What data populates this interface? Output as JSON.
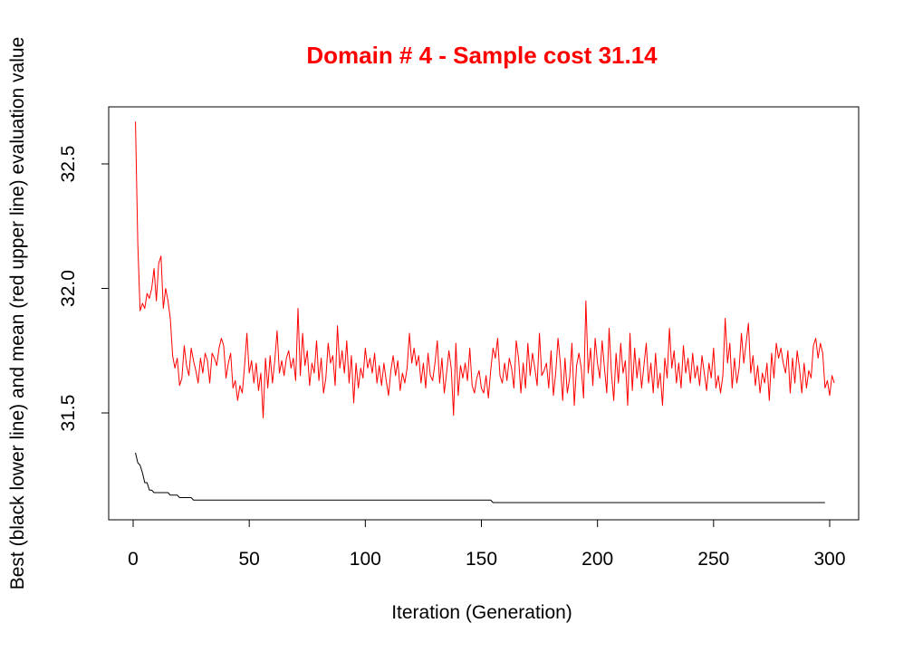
{
  "colors": {
    "title": "#ff0000",
    "mean_line": "#ff0000",
    "best_line": "#000000",
    "axes": "#000000",
    "background": "#ffffff"
  },
  "chart_data": {
    "type": "line",
    "title": "Domain # 4  - Sample cost 31.14",
    "xlabel": "Iteration (Generation)",
    "ylabel": "Best (black lower line) and mean (red upper line) evaluation value",
    "xlim": [
      0,
      300
    ],
    "ylim": [
      31.1,
      32.7
    ],
    "x_ticks": [
      0,
      50,
      100,
      150,
      200,
      250,
      300
    ],
    "x_tick_labels": [
      "0",
      "50",
      "100",
      "150",
      "200",
      "250",
      "300"
    ],
    "y_ticks": [
      31.5,
      32.0,
      32.5
    ],
    "y_tick_labels": [
      "31.5",
      "32.0",
      "32.5"
    ],
    "grid": false,
    "legend": "none",
    "x_range": [
      1,
      300
    ],
    "series": [
      {
        "color": "#ff0000",
        "values": [
          32.67,
          32.18,
          31.91,
          31.94,
          31.92,
          31.98,
          31.96,
          32.0,
          32.08,
          31.95,
          32.1,
          32.13,
          31.92,
          32.0,
          31.95,
          31.88,
          31.73,
          31.68,
          31.72,
          31.61,
          31.64,
          31.77,
          31.69,
          31.65,
          31.76,
          31.71,
          31.67,
          31.62,
          31.72,
          31.66,
          31.74,
          31.71,
          31.62,
          31.74,
          31.72,
          31.69,
          31.76,
          31.8,
          31.77,
          31.64,
          31.7,
          31.74,
          31.6,
          31.63,
          31.55,
          31.61,
          31.58,
          31.69,
          31.82,
          31.66,
          31.71,
          31.62,
          31.7,
          31.59,
          31.66,
          31.48,
          31.72,
          31.6,
          31.73,
          31.62,
          31.71,
          31.83,
          31.66,
          31.71,
          31.65,
          31.72,
          31.75,
          31.68,
          31.72,
          31.63,
          31.92,
          31.65,
          31.82,
          31.69,
          31.75,
          31.61,
          31.7,
          31.66,
          31.79,
          31.63,
          31.72,
          31.58,
          31.64,
          31.78,
          31.7,
          31.73,
          31.61,
          31.85,
          31.68,
          31.75,
          31.66,
          31.79,
          31.62,
          31.73,
          31.54,
          31.7,
          31.6,
          31.68,
          31.64,
          31.76,
          31.68,
          31.72,
          31.66,
          31.74,
          31.62,
          31.69,
          31.61,
          31.7,
          31.63,
          31.57,
          31.67,
          31.73,
          31.65,
          31.71,
          31.59,
          31.66,
          31.62,
          31.68,
          31.82,
          31.7,
          31.76,
          31.69,
          31.73,
          31.62,
          31.7,
          31.6,
          31.74,
          31.65,
          31.63,
          31.7,
          31.79,
          31.62,
          31.72,
          31.58,
          31.66,
          31.75,
          31.68,
          31.49,
          31.78,
          31.57,
          31.69,
          31.64,
          31.7,
          31.63,
          31.76,
          31.61,
          31.58,
          31.64,
          31.67,
          31.6,
          31.58,
          31.65,
          31.56,
          31.67,
          31.76,
          31.72,
          31.8,
          31.65,
          31.62,
          31.7,
          31.63,
          31.72,
          31.68,
          31.6,
          31.79,
          31.72,
          31.58,
          31.7,
          31.6,
          31.78,
          31.65,
          31.74,
          31.68,
          31.61,
          31.82,
          31.65,
          31.67,
          31.7,
          31.6,
          31.75,
          31.57,
          31.66,
          31.8,
          31.7,
          31.55,
          31.72,
          31.58,
          31.64,
          31.78,
          31.53,
          31.69,
          31.74,
          31.68,
          31.56,
          31.95,
          31.66,
          31.76,
          31.61,
          31.8,
          31.7,
          31.64,
          31.79,
          31.68,
          31.58,
          31.84,
          31.66,
          31.55,
          31.74,
          31.62,
          31.78,
          31.66,
          31.71,
          31.53,
          31.82,
          31.59,
          31.76,
          31.64,
          31.72,
          31.6,
          31.69,
          31.78,
          31.62,
          31.7,
          31.58,
          31.74,
          31.6,
          31.66,
          31.53,
          31.72,
          31.64,
          31.84,
          31.68,
          31.75,
          31.62,
          31.7,
          31.6,
          31.77,
          31.66,
          31.72,
          31.62,
          31.74,
          31.64,
          31.69,
          31.61,
          31.73,
          31.66,
          31.59,
          31.7,
          31.64,
          31.76,
          31.6,
          31.65,
          31.58,
          31.65,
          31.88,
          31.7,
          31.78,
          31.6,
          31.72,
          31.62,
          31.68,
          31.82,
          31.7,
          31.78,
          31.86,
          31.66,
          31.73,
          31.61,
          31.69,
          31.58,
          31.66,
          31.62,
          31.7,
          31.55,
          31.74,
          31.64,
          31.78,
          31.72,
          31.76,
          31.7,
          31.66,
          31.75,
          31.58,
          31.72,
          31.62,
          31.75,
          31.68,
          31.58,
          31.7,
          31.6,
          31.67,
          31.64,
          31.77,
          31.8,
          31.72,
          31.78,
          31.74,
          31.6,
          31.63,
          31.57,
          31.65,
          31.62
        ]
      },
      {
        "color": "#000000",
        "values": [
          31.34,
          31.3,
          31.29,
          31.26,
          31.22,
          31.22,
          31.19,
          31.19,
          31.18,
          31.18,
          31.18,
          31.18,
          31.18,
          31.18,
          31.18,
          31.17,
          31.17,
          31.17,
          31.17,
          31.16,
          31.16,
          31.16,
          31.16,
          31.16,
          31.16,
          31.15,
          31.15,
          31.15,
          31.15,
          31.15,
          31.15,
          31.15,
          31.15,
          31.15,
          31.15,
          31.15,
          31.15,
          31.15,
          31.15,
          31.15,
          31.15,
          31.15,
          31.15,
          31.15,
          31.15,
          31.15,
          31.15,
          31.15,
          31.15,
          31.15,
          31.15,
          31.15,
          31.15,
          31.15,
          31.15,
          31.15,
          31.15,
          31.15,
          31.15,
          31.15,
          31.15,
          31.15,
          31.15,
          31.15,
          31.15,
          31.15,
          31.15,
          31.15,
          31.15,
          31.15,
          31.15,
          31.15,
          31.15,
          31.15,
          31.15,
          31.15,
          31.15,
          31.15,
          31.15,
          31.15,
          31.15,
          31.15,
          31.15,
          31.15,
          31.15,
          31.15,
          31.15,
          31.15,
          31.15,
          31.15,
          31.15,
          31.15,
          31.15,
          31.15,
          31.15,
          31.15,
          31.15,
          31.15,
          31.15,
          31.15,
          31.15,
          31.15,
          31.15,
          31.15,
          31.15,
          31.15,
          31.15,
          31.15,
          31.15,
          31.15,
          31.15,
          31.15,
          31.15,
          31.15,
          31.15,
          31.15,
          31.15,
          31.15,
          31.15,
          31.15,
          31.15,
          31.15,
          31.15,
          31.15,
          31.15,
          31.15,
          31.15,
          31.15,
          31.15,
          31.15,
          31.15,
          31.15,
          31.15,
          31.15,
          31.15,
          31.15,
          31.15,
          31.15,
          31.15,
          31.15,
          31.15,
          31.15,
          31.15,
          31.15,
          31.15,
          31.15,
          31.15,
          31.15,
          31.15,
          31.15,
          31.15,
          31.15,
          31.15,
          31.15,
          31.14,
          31.14,
          31.14,
          31.14,
          31.14,
          31.14,
          31.14,
          31.14,
          31.14,
          31.14,
          31.14,
          31.14,
          31.14,
          31.14,
          31.14,
          31.14,
          31.14,
          31.14,
          31.14,
          31.14,
          31.14,
          31.14,
          31.14,
          31.14,
          31.14,
          31.14,
          31.14,
          31.14,
          31.14,
          31.14,
          31.14,
          31.14,
          31.14,
          31.14,
          31.14,
          31.14,
          31.14,
          31.14,
          31.14,
          31.14,
          31.14,
          31.14,
          31.14,
          31.14,
          31.14,
          31.14,
          31.14,
          31.14,
          31.14,
          31.14,
          31.14,
          31.14,
          31.14,
          31.14,
          31.14,
          31.14,
          31.14,
          31.14,
          31.14,
          31.14,
          31.14,
          31.14,
          31.14,
          31.14,
          31.14,
          31.14,
          31.14,
          31.14,
          31.14,
          31.14,
          31.14,
          31.14,
          31.14,
          31.14,
          31.14,
          31.14,
          31.14,
          31.14,
          31.14,
          31.14,
          31.14,
          31.14,
          31.14,
          31.14,
          31.14,
          31.14,
          31.14,
          31.14,
          31.14,
          31.14,
          31.14,
          31.14,
          31.14,
          31.14,
          31.14,
          31.14,
          31.14,
          31.14,
          31.14,
          31.14,
          31.14,
          31.14,
          31.14,
          31.14,
          31.14,
          31.14,
          31.14,
          31.14,
          31.14,
          31.14,
          31.14,
          31.14,
          31.14,
          31.14,
          31.14,
          31.14,
          31.14,
          31.14,
          31.14,
          31.14,
          31.14,
          31.14,
          31.14,
          31.14,
          31.14,
          31.14,
          31.14,
          31.14,
          31.14,
          31.14,
          31.14,
          31.14,
          31.14,
          31.14,
          31.14,
          31.14,
          31.14,
          31.14,
          31.14,
          31.14,
          31.14,
          31.14,
          31.14,
          31.14
        ]
      }
    ]
  }
}
